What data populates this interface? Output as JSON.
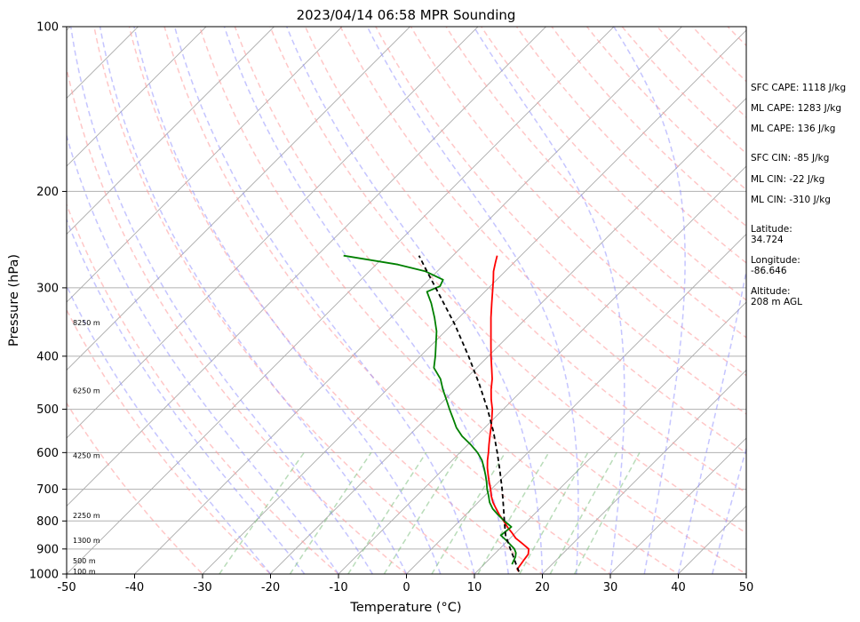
{
  "chart_data": {
    "type": "line",
    "title": "2023/04/14 06:58 MPR Sounding",
    "xlabel": "Temperature (°C)",
    "ylabel": "Pressure (hPa)",
    "xlim": [
      -50,
      50
    ],
    "ylim": [
      1000,
      100
    ],
    "y_scale": "log",
    "x_ticks": [
      "-50",
      "-40",
      "-30",
      "-20",
      "-10",
      "0",
      "10",
      "20",
      "30",
      "40",
      "50"
    ],
    "y_ticks": [
      "100",
      "200",
      "300",
      "400",
      "500",
      "600",
      "700",
      "800",
      "900",
      "1000"
    ],
    "height_labels": [
      {
        "text": "100 m",
        "pressure": 988
      },
      {
        "text": "500 m",
        "pressure": 945
      },
      {
        "text": "1300 m",
        "pressure": 867
      },
      {
        "text": "2250 m",
        "pressure": 782
      },
      {
        "text": "4250 m",
        "pressure": 607
      },
      {
        "text": "6250 m",
        "pressure": 462
      },
      {
        "text": "8250 m",
        "pressure": 347
      }
    ],
    "series": [
      {
        "color": "#ff0000",
        "points": [
          [
            990,
            16.2
          ],
          [
            980,
            15.6
          ],
          [
            960,
            15.4
          ],
          [
            940,
            15.2
          ],
          [
            920,
            15.0
          ],
          [
            900,
            14.3
          ],
          [
            880,
            12.6
          ],
          [
            860,
            10.8
          ],
          [
            840,
            9.4
          ],
          [
            820,
            7.9
          ],
          [
            800,
            6.5
          ],
          [
            780,
            5.0
          ],
          [
            760,
            3.6
          ],
          [
            740,
            2.2
          ],
          [
            720,
            1.0
          ],
          [
            700,
            -0.1
          ],
          [
            680,
            -1.3
          ],
          [
            660,
            -2.5
          ],
          [
            640,
            -3.7
          ],
          [
            620,
            -4.8
          ],
          [
            600,
            -5.8
          ],
          [
            580,
            -6.9
          ],
          [
            560,
            -8.0
          ],
          [
            540,
            -9.1
          ],
          [
            520,
            -10.3
          ],
          [
            500,
            -11.6
          ],
          [
            480,
            -13.2
          ],
          [
            460,
            -14.7
          ],
          [
            440,
            -16.1
          ],
          [
            420,
            -17.8
          ],
          [
            400,
            -19.6
          ],
          [
            380,
            -21.4
          ],
          [
            360,
            -23.3
          ],
          [
            340,
            -25.3
          ],
          [
            320,
            -27.3
          ],
          [
            300,
            -29.4
          ],
          [
            290,
            -30.5
          ],
          [
            280,
            -31.7
          ],
          [
            270,
            -32.7
          ],
          [
            262,
            -33.5
          ]
        ]
      },
      {
        "color": "#008000",
        "points": [
          [
            960,
            14.1
          ],
          [
            945,
            13.8
          ],
          [
            930,
            13.5
          ],
          [
            915,
            13.0
          ],
          [
            900,
            12.2
          ],
          [
            870,
            9.9
          ],
          [
            850,
            8.2
          ],
          [
            820,
            8.5
          ],
          [
            800,
            6.6
          ],
          [
            780,
            4.8
          ],
          [
            760,
            3.1
          ],
          [
            740,
            1.7
          ],
          [
            720,
            0.6
          ],
          [
            700,
            -0.6
          ],
          [
            680,
            -1.7
          ],
          [
            660,
            -2.9
          ],
          [
            640,
            -4.2
          ],
          [
            620,
            -5.6
          ],
          [
            600,
            -7.4
          ],
          [
            580,
            -9.6
          ],
          [
            560,
            -12.1
          ],
          [
            540,
            -14.2
          ],
          [
            520,
            -16.0
          ],
          [
            500,
            -17.9
          ],
          [
            480,
            -19.8
          ],
          [
            460,
            -21.8
          ],
          [
            440,
            -23.7
          ],
          [
            420,
            -26.3
          ],
          [
            400,
            -27.8
          ],
          [
            380,
            -29.5
          ],
          [
            360,
            -31.3
          ],
          [
            340,
            -33.6
          ],
          [
            320,
            -36.2
          ],
          [
            305,
            -38.5
          ],
          [
            298,
            -37.4
          ],
          [
            290,
            -37.9
          ],
          [
            280,
            -41.7
          ],
          [
            272,
            -46.8
          ],
          [
            262,
            -56.1
          ]
        ]
      },
      {
        "color": "#000000",
        "dashed": true,
        "points": [
          [
            990,
            16.2
          ],
          [
            960,
            14.7
          ],
          [
            930,
            13.2
          ],
          [
            900,
            11.6
          ],
          [
            870,
            10.0
          ],
          [
            850,
            8.9
          ],
          [
            800,
            6.6
          ],
          [
            750,
            4.2
          ],
          [
            700,
            1.6
          ],
          [
            650,
            -1.3
          ],
          [
            600,
            -4.5
          ],
          [
            550,
            -8.1
          ],
          [
            500,
            -12.3
          ],
          [
            450,
            -17.2
          ],
          [
            400,
            -22.9
          ],
          [
            350,
            -29.6
          ],
          [
            300,
            -37.8
          ],
          [
            280,
            -41.5
          ],
          [
            262,
            -45.0
          ]
        ]
      }
    ]
  },
  "annotations": {
    "sfc_cape": "SFC CAPE: 1118 J/kg",
    "ml_cape_1": "ML CAPE: 1283 J/kg",
    "ml_cape_2": "ML CAPE: 136 J/kg",
    "sfc_cin": "SFC CIN: -85 J/kg",
    "ml_cin_1": "ML CIN: -22 J/kg",
    "ml_cin_2": "ML CIN: -310 J/kg",
    "latitude": "Latitude:\n34.724",
    "longitude": "Longitude:\n-86.646",
    "altitude": "Altitude:\n208 m AGL"
  }
}
